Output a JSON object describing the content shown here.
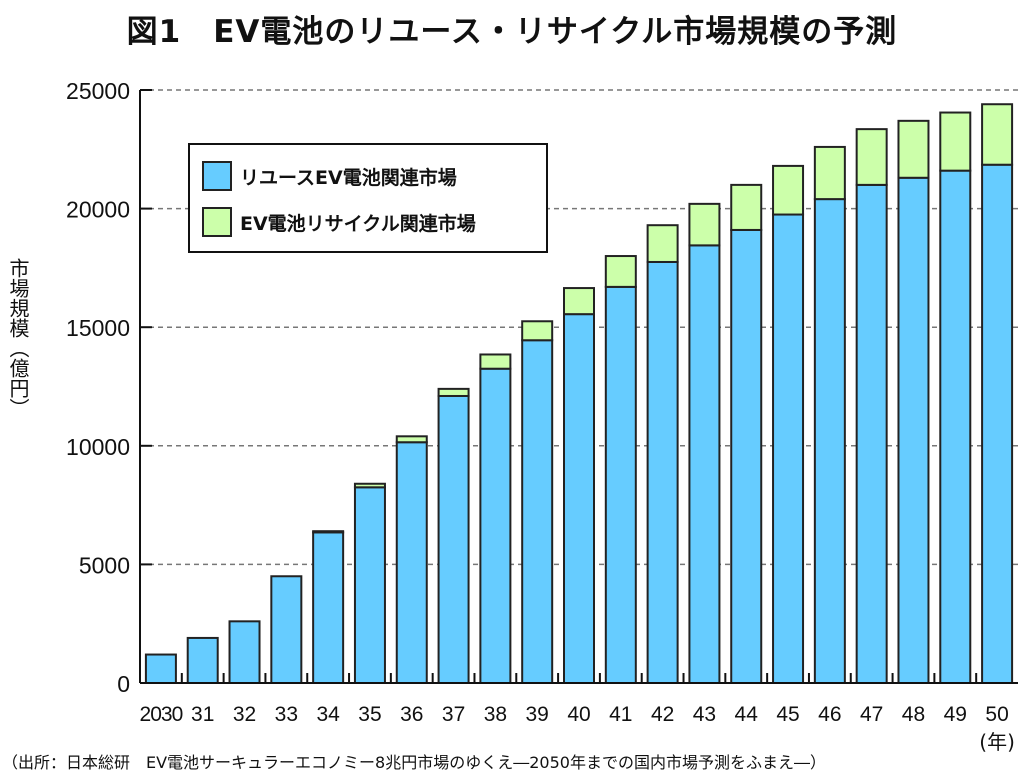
{
  "chart_data": {
    "type": "bar",
    "stacked": true,
    "title": "図1　EV電池のリユース・リサイクル市場規模の予測",
    "xlabel": "(年)",
    "ylabel": "市場規模（億円）",
    "ylim": [
      0,
      25000
    ],
    "yticks": [
      0,
      5000,
      10000,
      15000,
      20000,
      25000
    ],
    "ytick_labels": [
      "0",
      "5000",
      "10000",
      "15000",
      "20000",
      "25000"
    ],
    "grid": true,
    "legend_position": "top-left",
    "categories": [
      "2030",
      "31",
      "32",
      "33",
      "34",
      "35",
      "36",
      "37",
      "38",
      "39",
      "40",
      "41",
      "42",
      "43",
      "44",
      "45",
      "46",
      "47",
      "48",
      "49",
      "50"
    ],
    "series": [
      {
        "name": "リユースEV電池関連市場",
        "color": "#66CCFF",
        "values": [
          1200,
          1900,
          2600,
          4500,
          6350,
          8250,
          10150,
          12100,
          13250,
          14450,
          15550,
          16700,
          17750,
          18450,
          19100,
          19750,
          20400,
          21000,
          21300,
          21600,
          21850
        ]
      },
      {
        "name": "EV電池リサイクル関連市場",
        "color": "#CCFFAA",
        "values": [
          0,
          0,
          0,
          0,
          50,
          150,
          250,
          300,
          600,
          800,
          1100,
          1300,
          1550,
          1750,
          1900,
          2050,
          2200,
          2350,
          2400,
          2450,
          2550
        ]
      }
    ],
    "source": "（出所：日本総研　EV電池サーキュラーエコノミー8兆円市場のゆくえ―2050年までの国内市場予測をふまえ―）"
  }
}
